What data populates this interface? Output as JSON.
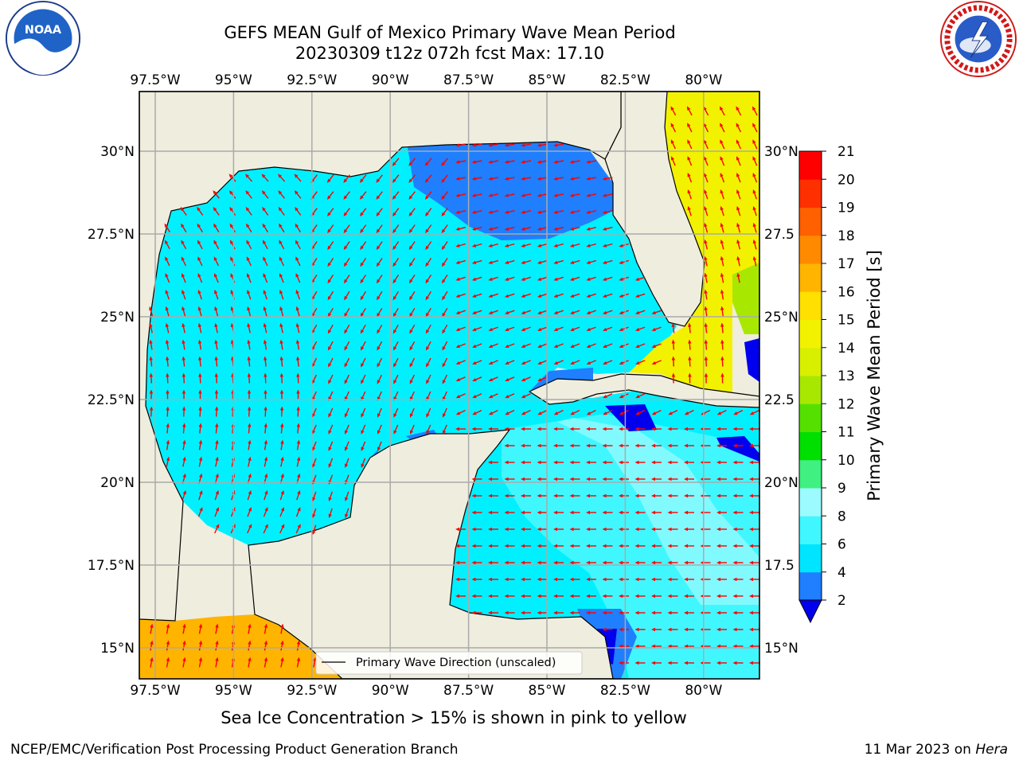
{
  "title_line1": "GEFS MEAN Gulf of Mexico Primary Wave Mean Period",
  "title_line2": "20230309 t12z 072h fcst   Max: 17.10",
  "lon_labels": [
    "97.5°W",
    "95°W",
    "92.5°W",
    "90°W",
    "87.5°W",
    "85°W",
    "82.5°W",
    "80°W"
  ],
  "lat_labels": [
    "30°N",
    "27.5°N",
    "25°N",
    "22.5°N",
    "20°N",
    "17.5°N",
    "15°N"
  ],
  "lat_labels_right": [
    "30°N",
    "27.5",
    "25°N",
    "22.5",
    "20°N",
    "17.5",
    "15°N"
  ],
  "colorbar": {
    "label": "Primary Wave Mean Period [s]",
    "ticks": [
      "2",
      "4",
      "6",
      "8",
      "9",
      "10",
      "11",
      "12",
      "13",
      "14",
      "15",
      "16",
      "17",
      "18",
      "19",
      "20",
      "21"
    ],
    "colors": [
      "#1f7fff",
      "#00e5ff",
      "#40f7ff",
      "#9cfbff",
      "#40f080",
      "#00e000",
      "#55e000",
      "#a8e800",
      "#d8f000",
      "#f2f200",
      "#ffe000",
      "#ffb400",
      "#ff8a00",
      "#ff6000",
      "#ff3000",
      "#ff0000"
    ],
    "under_color": "#0000ee"
  },
  "legend_label": "Primary Wave Direction (unscaled)",
  "caption": "Sea Ice Concentration > 15% is shown in pink to yellow",
  "footer_left": "NCEP/EMC/Verification Post Processing Product Generation Branch",
  "footer_date": "11 Mar 2023 on ",
  "footer_machine": "Hera",
  "logos": {
    "left": "noaa-logo",
    "left_text": "NOAA",
    "right": "nws-logo",
    "right_text": "NATIONAL WEATHER SERVICE"
  },
  "colors": {
    "land": "#efedde",
    "ocean": "#00f0ff",
    "arrow": "#ff0000",
    "grid": "#aaaaaa"
  }
}
